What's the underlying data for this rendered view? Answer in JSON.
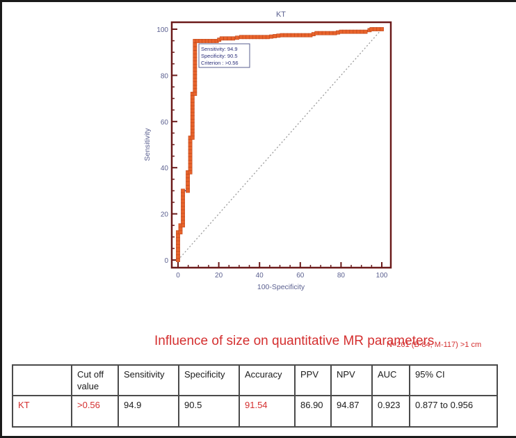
{
  "chart_data": {
    "type": "line",
    "title": "KT",
    "xlabel": "100-Specificity",
    "ylabel": "Sensitivity",
    "xlim": [
      0,
      100
    ],
    "ylim": [
      0,
      100
    ],
    "xticks": [
      0,
      20,
      40,
      60,
      80,
      100
    ],
    "yticks": [
      0,
      20,
      40,
      60,
      80,
      100
    ],
    "grid": false,
    "colors": {
      "curve_line": "#2b2f7a",
      "markers": "#e8632b",
      "frame": "#6b1a1a",
      "tick_labels": "#5a5f8f",
      "diagonal": "#9a9a9a"
    },
    "series": [
      {
        "name": "ROC curve",
        "points": [
          [
            0,
            0
          ],
          [
            0,
            12
          ],
          [
            1.2,
            12
          ],
          [
            1.2,
            15
          ],
          [
            2.4,
            15
          ],
          [
            2.4,
            30
          ],
          [
            4.8,
            30
          ],
          [
            4.8,
            38
          ],
          [
            6,
            38
          ],
          [
            6,
            53
          ],
          [
            7.1,
            53
          ],
          [
            7.1,
            72
          ],
          [
            8.3,
            72
          ],
          [
            8.3,
            84
          ],
          [
            8.3,
            90
          ],
          [
            8.3,
            94.9
          ],
          [
            9.5,
            94.9
          ],
          [
            19,
            94.9
          ],
          [
            21.4,
            96
          ],
          [
            27,
            96
          ],
          [
            31,
            96.6
          ],
          [
            44,
            96.6
          ],
          [
            51,
            97.4
          ],
          [
            65,
            97.4
          ],
          [
            68,
            98.3
          ],
          [
            77,
            98.3
          ],
          [
            80,
            98.9
          ],
          [
            92,
            98.9
          ],
          [
            94,
            99.6
          ],
          [
            95,
            100
          ],
          [
            100,
            100
          ]
        ]
      },
      {
        "name": "Reference line",
        "points": [
          [
            0,
            0
          ],
          [
            100,
            100
          ]
        ],
        "style": "dotted"
      }
    ],
    "annotations": [
      {
        "text": "Sensitivity: 94.9"
      },
      {
        "text": "Specificity: 90.5"
      },
      {
        "text": "Criterion : >0.56"
      }
    ]
  },
  "caption": {
    "title": "Influence of size on quantitative MR parameters",
    "sample": "N=201 (B-84, M-117) >1 cm"
  },
  "table": {
    "headers": [
      "",
      "Cut off value",
      "Sensitivity",
      "Specificity",
      "Accuracy",
      "PPV",
      "NPV",
      "AUC",
      "95% CI"
    ],
    "rows": [
      {
        "label": "KT",
        "cutoff": ">0.56",
        "sensitivity": "94.9",
        "specificity": "90.5",
        "accuracy": "91.54",
        "ppv": "86.90",
        "npv": "94.87",
        "auc": "0.923",
        "ci": "0.877 to 0.956"
      }
    ]
  }
}
